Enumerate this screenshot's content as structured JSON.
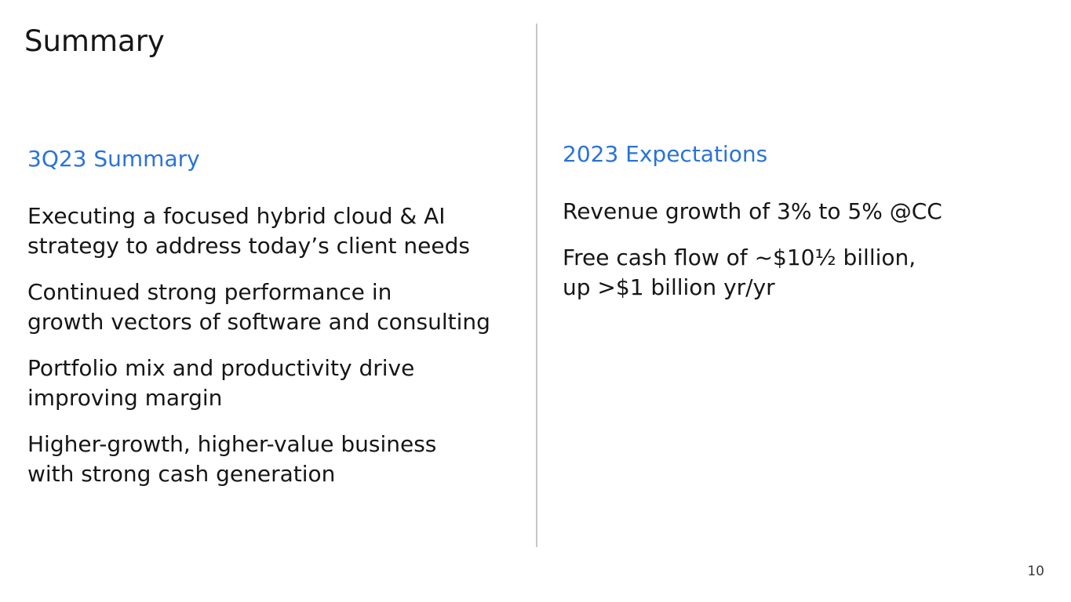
{
  "slide": {
    "title": "Summary",
    "page_number": "10"
  },
  "left_column": {
    "heading": "3Q23 Summary",
    "items": [
      {
        "lines": [
          "Executing a focused hybrid cloud & AI",
          "strategy to address today’s client needs"
        ]
      },
      {
        "lines": [
          "Continued strong performance in",
          "growth vectors of software and consulting"
        ]
      },
      {
        "lines": [
          "Portfolio mix and productivity drive",
          "improving margin"
        ]
      },
      {
        "lines": [
          "Higher-growth, higher-value business",
          "with strong cash generation"
        ]
      }
    ]
  },
  "right_column": {
    "heading": "2023 Expectations",
    "items": [
      {
        "lines": [
          "Revenue growth of 3% to 5% @CC"
        ]
      },
      {
        "lines": [
          "Free cash flow of ~$10½ billion,",
          "up >$1 billion yr/yr"
        ]
      }
    ]
  },
  "colors": {
    "heading_accent": "#2a73d8",
    "body_text": "#161616",
    "divider": "#c6c6c6"
  }
}
